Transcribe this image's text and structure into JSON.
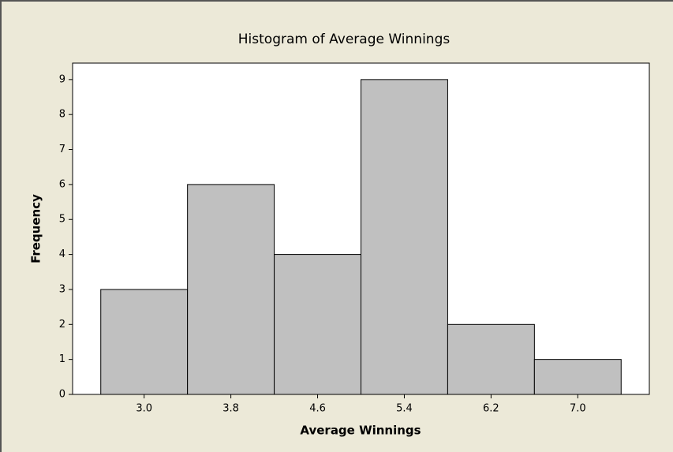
{
  "chart_data": {
    "type": "histogram",
    "title": "Histogram of Average Winnings",
    "xlabel": "Average Winnings",
    "ylabel": "Frequency",
    "bins": [
      2.6,
      3.4,
      4.2,
      5.0,
      5.8,
      6.6,
      7.4
    ],
    "values": [
      3,
      6,
      4,
      9,
      2,
      1
    ],
    "color": "#c0c0c0",
    "xlim": [
      2.34,
      7.66
    ],
    "xticks": [
      {
        "value": 3,
        "label": "3.0"
      },
      {
        "value": 3.8,
        "label": "3.8"
      },
      {
        "value": 4.6,
        "label": "4.6"
      },
      {
        "value": 5.4,
        "label": "5.4"
      },
      {
        "value": 6.2,
        "label": "6.2"
      },
      {
        "value": 7,
        "label": "7.0"
      }
    ],
    "ylim": [
      0,
      9.47
    ],
    "yticks": [
      0,
      1,
      2,
      3,
      4,
      5,
      6,
      7,
      8,
      9
    ]
  }
}
